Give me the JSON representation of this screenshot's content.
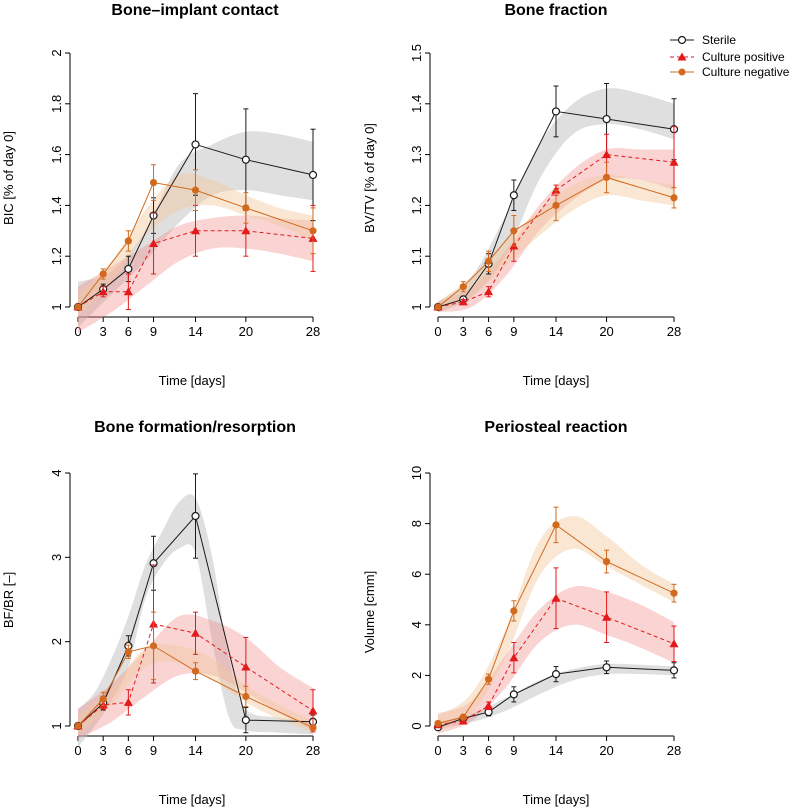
{
  "days": [
    0,
    3,
    6,
    9,
    14,
    20,
    28
  ],
  "colors": {
    "sterile": "#1a1a1a",
    "positive": "#e31a1c",
    "negative": "#d2691e"
  },
  "legend": [
    {
      "key": "sterile",
      "label": "Sterile"
    },
    {
      "key": "positive",
      "label": "Culture positive"
    },
    {
      "key": "negative",
      "label": "Culture negative"
    }
  ],
  "chart_data": [
    {
      "type": "line",
      "title": "Bone–implant contact",
      "xlabel": "Time [days]",
      "ylabel": "BIC [% of day 0]",
      "xlim": [
        0,
        28
      ],
      "ylim": [
        1,
        2
      ],
      "yticks": [
        1,
        1.2,
        1.4,
        1.6,
        1.8,
        2
      ],
      "ytick_labels": [
        "1",
        "1.2",
        "1.4",
        "1.6",
        "1.8",
        "2"
      ],
      "xticks": [
        0,
        3,
        6,
        9,
        14,
        20,
        28
      ],
      "series": [
        {
          "key": "sterile",
          "name": "Sterile",
          "values": [
            1.0,
            1.07,
            1.15,
            1.36,
            1.64,
            1.58,
            1.52
          ],
          "err": [
            0.01,
            0.02,
            0.05,
            0.07,
            0.2,
            0.2,
            0.18
          ],
          "band_x": [
            0,
            4,
            8,
            12,
            16,
            20,
            24,
            28
          ],
          "band_lo": [
            0.92,
            1.05,
            1.18,
            1.33,
            1.44,
            1.46,
            1.44,
            1.42
          ],
          "band_hi": [
            1.1,
            1.14,
            1.3,
            1.56,
            1.64,
            1.69,
            1.68,
            1.65
          ]
        },
        {
          "key": "positive",
          "name": "Culture positive",
          "values": [
            1.0,
            1.06,
            1.06,
            1.25,
            1.3,
            1.3,
            1.27
          ],
          "err": [
            0.01,
            0.02,
            0.07,
            0.12,
            0.1,
            0.1,
            0.13
          ],
          "band_x": [
            0,
            4,
            8,
            12,
            16,
            20,
            24,
            28
          ],
          "band_lo": [
            0.9,
            0.98,
            1.08,
            1.18,
            1.23,
            1.23,
            1.21,
            1.18
          ],
          "band_hi": [
            1.08,
            1.16,
            1.24,
            1.32,
            1.35,
            1.36,
            1.35,
            1.34
          ]
        },
        {
          "key": "negative",
          "name": "Culture negative",
          "values": [
            1.0,
            1.13,
            1.26,
            1.49,
            1.46,
            1.39,
            1.3
          ],
          "err": [
            0.01,
            0.02,
            0.04,
            0.07,
            0.08,
            0.06,
            0.09
          ],
          "band_x": [
            0,
            4,
            8,
            12,
            16,
            20,
            24,
            28
          ],
          "band_lo": [
            0.96,
            1.1,
            1.28,
            1.38,
            1.4,
            1.36,
            1.32,
            1.26
          ],
          "band_hi": [
            1.05,
            1.18,
            1.38,
            1.52,
            1.5,
            1.44,
            1.39,
            1.36
          ]
        }
      ]
    },
    {
      "type": "line",
      "title": "Bone fraction",
      "xlabel": "Time [days]",
      "ylabel": "BV/TV [% of day 0]",
      "xlim": [
        0,
        28
      ],
      "ylim": [
        1,
        1.5
      ],
      "yticks": [
        1,
        1.1,
        1.2,
        1.3,
        1.4,
        1.5
      ],
      "ytick_labels": [
        "1",
        "1.1",
        "1.2",
        "1.3",
        "1.4",
        "1.5"
      ],
      "xticks": [
        0,
        3,
        6,
        9,
        14,
        20,
        28
      ],
      "series": [
        {
          "key": "sterile",
          "name": "Sterile",
          "values": [
            1.0,
            1.015,
            1.085,
            1.22,
            1.385,
            1.37,
            1.35
          ],
          "err": [
            0.003,
            0.005,
            0.02,
            0.03,
            0.05,
            0.07,
            0.06
          ],
          "band_x": [
            0,
            4,
            8,
            12,
            16,
            20,
            24,
            28
          ],
          "band_lo": [
            0.99,
            1.02,
            1.1,
            1.25,
            1.34,
            1.36,
            1.35,
            1.33
          ],
          "band_hi": [
            1.01,
            1.06,
            1.18,
            1.32,
            1.4,
            1.43,
            1.42,
            1.4
          ]
        },
        {
          "key": "positive",
          "name": "Culture positive",
          "values": [
            1.0,
            1.01,
            1.03,
            1.12,
            1.23,
            1.3,
            1.285
          ],
          "err": [
            0.003,
            0.005,
            0.01,
            0.03,
            0.01,
            0.04,
            0.07
          ],
          "band_x": [
            0,
            4,
            8,
            12,
            16,
            20,
            24,
            28
          ],
          "band_lo": [
            0.99,
            1.0,
            1.06,
            1.15,
            1.21,
            1.25,
            1.25,
            1.23
          ],
          "band_hi": [
            1.01,
            1.04,
            1.11,
            1.2,
            1.27,
            1.31,
            1.31,
            1.31
          ]
        },
        {
          "key": "negative",
          "name": "Culture negative",
          "values": [
            1.0,
            1.04,
            1.09,
            1.15,
            1.2,
            1.255,
            1.215
          ],
          "err": [
            0.003,
            0.01,
            0.02,
            0.03,
            0.03,
            0.03,
            0.02
          ],
          "band_x": [
            0,
            4,
            8,
            12,
            16,
            20,
            24,
            28
          ],
          "band_lo": [
            0.99,
            1.02,
            1.08,
            1.14,
            1.19,
            1.22,
            1.21,
            1.2
          ],
          "band_hi": [
            1.01,
            1.06,
            1.13,
            1.19,
            1.24,
            1.26,
            1.25,
            1.24
          ]
        }
      ]
    },
    {
      "type": "line",
      "title": "Bone formation/resorption",
      "xlabel": "Time [days]",
      "ylabel": "BF/BR [–]",
      "xlim": [
        0,
        28
      ],
      "ylim": [
        1,
        4
      ],
      "yticks": [
        1,
        2,
        3,
        4
      ],
      "ytick_labels": [
        "1",
        "2",
        "3",
        "4"
      ],
      "xticks": [
        0,
        3,
        6,
        9,
        14,
        20,
        28
      ],
      "series": [
        {
          "key": "sterile",
          "name": "Sterile",
          "values": [
            1.0,
            1.27,
            1.95,
            2.93,
            3.49,
            1.07,
            1.05
          ],
          "err": [
            0.02,
            0.08,
            0.12,
            0.32,
            0.5,
            0.15,
            0.08
          ],
          "band_x": [
            0,
            2,
            4,
            6,
            8,
            10,
            12,
            14,
            16,
            18,
            20,
            24,
            28
          ],
          "band_lo": [
            0.75,
            1.0,
            1.3,
            1.7,
            2.5,
            2.9,
            3.1,
            3.05,
            2.0,
            1.1,
            0.95,
            0.92,
            0.9
          ],
          "band_hi": [
            1.2,
            1.4,
            1.8,
            2.3,
            2.9,
            3.3,
            3.65,
            3.7,
            3.0,
            1.8,
            1.2,
            1.1,
            1.05
          ]
        },
        {
          "key": "positive",
          "name": "Culture positive",
          "values": [
            1.0,
            1.25,
            1.28,
            2.21,
            2.1,
            1.7,
            1.18
          ],
          "err": [
            0.02,
            0.05,
            0.15,
            0.7,
            0.25,
            0.35,
            0.25
          ],
          "band_x": [
            0,
            4,
            8,
            12,
            16,
            20,
            24,
            28
          ],
          "band_lo": [
            0.85,
            1.05,
            1.35,
            1.6,
            1.6,
            1.4,
            1.15,
            0.95
          ],
          "band_hi": [
            1.2,
            1.5,
            1.9,
            2.3,
            2.25,
            2.05,
            1.7,
            1.45
          ]
        },
        {
          "key": "negative",
          "name": "Culture negative",
          "values": [
            1.0,
            1.32,
            1.88,
            1.95,
            1.65,
            1.35,
            0.98
          ],
          "err": [
            0.02,
            0.08,
            0.08,
            0.4,
            0.1,
            0.12,
            0.03
          ],
          "band_x": [
            0,
            4,
            8,
            12,
            16,
            20,
            24,
            28
          ],
          "band_lo": [
            0.9,
            1.25,
            1.7,
            1.75,
            1.55,
            1.28,
            1.08,
            0.92
          ],
          "band_hi": [
            1.12,
            1.45,
            1.92,
            1.95,
            1.8,
            1.48,
            1.25,
            1.06
          ]
        }
      ]
    },
    {
      "type": "line",
      "title": "Periosteal reaction",
      "xlabel": "Time [days]",
      "ylabel": "Volume [cmm]",
      "xlim": [
        0,
        28
      ],
      "ylim": [
        0,
        10
      ],
      "yticks": [
        0,
        2,
        4,
        6,
        8,
        10
      ],
      "ytick_labels": [
        "0",
        "2",
        "4",
        "6",
        "8",
        "10"
      ],
      "xticks": [
        0,
        3,
        6,
        9,
        14,
        20,
        28
      ],
      "series": [
        {
          "key": "sterile",
          "name": "Sterile",
          "values": [
            -0.05,
            0.3,
            0.55,
            1.25,
            2.05,
            2.32,
            2.2
          ],
          "err": [
            0.05,
            0.1,
            0.15,
            0.3,
            0.3,
            0.25,
            0.3
          ],
          "band_x": [
            0,
            4,
            8,
            12,
            16,
            20,
            24,
            28
          ],
          "band_lo": [
            -0.1,
            0.15,
            0.6,
            1.25,
            1.8,
            2.05,
            2.05,
            2.0
          ],
          "band_hi": [
            0.15,
            0.5,
            1.1,
            1.8,
            2.25,
            2.45,
            2.42,
            2.35
          ]
        },
        {
          "key": "positive",
          "name": "Culture positive",
          "values": [
            0.05,
            0.2,
            0.8,
            2.7,
            5.05,
            4.3,
            3.25
          ],
          "err": [
            0.05,
            0.1,
            0.15,
            0.6,
            1.2,
            1.0,
            0.7
          ],
          "band_x": [
            0,
            4,
            8,
            12,
            16,
            20,
            24,
            28
          ],
          "band_lo": [
            -0.3,
            0.2,
            1.5,
            3.3,
            4.0,
            3.6,
            3.1,
            2.5
          ],
          "band_hi": [
            0.5,
            1.0,
            2.8,
            4.6,
            5.5,
            5.3,
            4.8,
            4.1
          ]
        },
        {
          "key": "negative",
          "name": "Culture negative",
          "values": [
            0.1,
            0.35,
            1.85,
            4.55,
            7.95,
            6.5,
            5.25
          ],
          "err": [
            0.05,
            0.1,
            0.2,
            0.4,
            0.7,
            0.45,
            0.35
          ],
          "band_x": [
            0,
            4,
            8,
            12,
            16,
            20,
            24,
            28
          ],
          "band_lo": [
            -0.2,
            0.5,
            2.7,
            5.9,
            7.0,
            6.3,
            5.6,
            4.9
          ],
          "band_hi": [
            0.4,
            1.3,
            3.8,
            7.3,
            8.3,
            7.5,
            6.4,
            5.6
          ]
        }
      ]
    }
  ]
}
